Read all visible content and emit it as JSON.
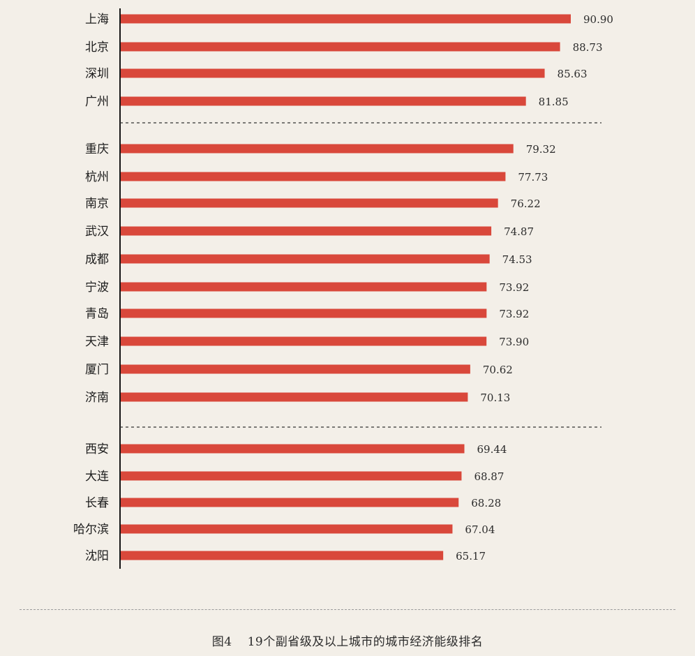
{
  "chart_data": {
    "type": "bar",
    "orientation": "horizontal",
    "categories": [
      "上海",
      "北京",
      "深圳",
      "广州",
      "重庆",
      "杭州",
      "南京",
      "武汉",
      "成都",
      "宁波",
      "青岛",
      "天津",
      "厦门",
      "济南",
      "西安",
      "大连",
      "长春",
      "哈尔滨",
      "沈阳"
    ],
    "values": [
      90.9,
      88.73,
      85.63,
      81.85,
      79.32,
      77.73,
      76.22,
      74.87,
      74.53,
      73.92,
      73.92,
      73.9,
      70.62,
      70.13,
      69.44,
      68.87,
      68.28,
      67.04,
      65.17
    ],
    "value_labels": [
      "90.90",
      "88.73",
      "85.63",
      "81.85",
      "79.32",
      "77.73",
      "76.22",
      "74.87",
      "74.53",
      "73.92",
      "73.92",
      "73.90",
      "70.62",
      "70.13",
      "69.44",
      "68.87",
      "68.28",
      "67.04",
      "65.17"
    ],
    "groups": [
      [
        0,
        3
      ],
      [
        4,
        13
      ],
      [
        14,
        18
      ]
    ],
    "bar_color": "#d9483b",
    "grid": false
  },
  "caption": {
    "figure": "图4",
    "text": "19个副省级及以上城市的城市经济能级排名"
  }
}
